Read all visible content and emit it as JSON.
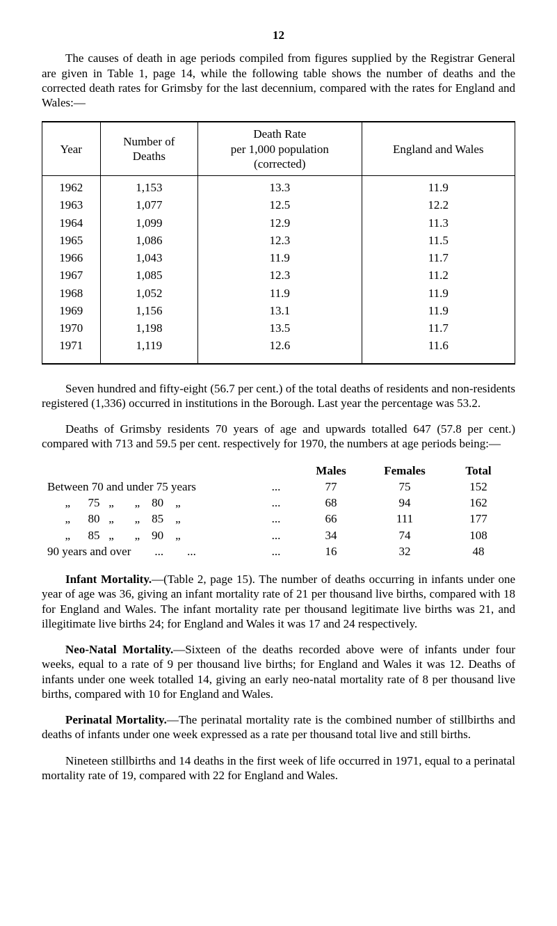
{
  "page_number": "12",
  "intro_paragraph": "The causes of death in age periods compiled from figures supplied by the Registrar General are given in Table 1, page 14, while the following table shows the number of deaths and the corrected death rates for Grimsby for the last decennium, compared with the rates for England and Wales:—",
  "death_rate_table": {
    "headers": {
      "year": "Year",
      "deaths": "Number of\nDeaths",
      "rate": "Death Rate\nper 1,000 population\n(corrected)",
      "enw": "England and Wales"
    },
    "rows": [
      {
        "year": "1962",
        "deaths": "1,153",
        "rate": "13.3",
        "enw": "11.9"
      },
      {
        "year": "1963",
        "deaths": "1,077",
        "rate": "12.5",
        "enw": "12.2"
      },
      {
        "year": "1964",
        "deaths": "1,099",
        "rate": "12.9",
        "enw": "11.3"
      },
      {
        "year": "1965",
        "deaths": "1,086",
        "rate": "12.3",
        "enw": "11.5"
      },
      {
        "year": "1966",
        "deaths": "1,043",
        "rate": "11.9",
        "enw": "11.7"
      },
      {
        "year": "1967",
        "deaths": "1,085",
        "rate": "12.3",
        "enw": "11.2"
      },
      {
        "year": "1968",
        "deaths": "1,052",
        "rate": "11.9",
        "enw": "11.9"
      },
      {
        "year": "1969",
        "deaths": "1,156",
        "rate": "13.1",
        "enw": "11.9"
      },
      {
        "year": "1970",
        "deaths": "1,198",
        "rate": "13.5",
        "enw": "11.7"
      },
      {
        "year": "1971",
        "deaths": "1,119",
        "rate": "12.6",
        "enw": "11.6"
      }
    ]
  },
  "para_758": "Seven hundred and fifty-eight (56.7 per cent.) of the total deaths of residents and non-residents registered (1,336) occurred in institutions in the Borough. Last year the percentage was 53.2.",
  "para_647": "Deaths of Grimsby residents 70 years of age and upwards totalled 647 (57.8 per cent.) compared with 713 and 59.5 per cent. respectively for 1970, the numbers at age periods being:—",
  "age_table": {
    "headers": {
      "males": "Males",
      "females": "Females",
      "total": "Total"
    },
    "rows": [
      {
        "label": "Between 70 and under 75 years",
        "dots": "...",
        "males": "77",
        "females": "75",
        "total": "152"
      },
      {
        "label": "      „      75   „       „    80    „",
        "dots": "...",
        "males": "68",
        "females": "94",
        "total": "162"
      },
      {
        "label": "      „      80   „       „    85    „",
        "dots": "...",
        "males": "66",
        "females": "111",
        "total": "177"
      },
      {
        "label": "      „      85   „       „    90    „",
        "dots": "...",
        "males": "34",
        "females": "74",
        "total": "108"
      },
      {
        "label": "90 years and over        ...        ...",
        "dots": "...",
        "males": "16",
        "females": "32",
        "total": "48"
      }
    ]
  },
  "infant_heading": "Infant Mortality.",
  "infant_body": "—(Table 2, page 15). The number of deaths occurring in infants under one year of age was 36, giving an infant mortality rate of 21 per thousand live births, compared with 18 for England and Wales. The infant mortality rate per thousand legitimate live births was 21, and illegitimate live births 24; for England and Wales it was 17 and 24 respectively.",
  "neonatal_heading": "Neo-Natal Mortality.",
  "neonatal_body": "—Sixteen of the deaths recorded above were of infants under four weeks, equal to a rate of 9 per thousand live births; for England and Wales it was 12. Deaths of infants under one week totalled 14, giving an early neo-natal mortality rate of 8 per thousand live births, compared with 10 for England and Wales.",
  "perinatal_heading": "Perinatal Mortality.",
  "perinatal_body": "—The perinatal mortality rate is the combined number of stillbirths and deaths of infants under one week expressed as a rate per thousand total live and still births.",
  "perinatal_para2": "Nineteen stillbirths and 14 deaths in the first week of life occurred in 1971, equal to a perinatal mortality rate of 19, compared with 22 for England and Wales."
}
